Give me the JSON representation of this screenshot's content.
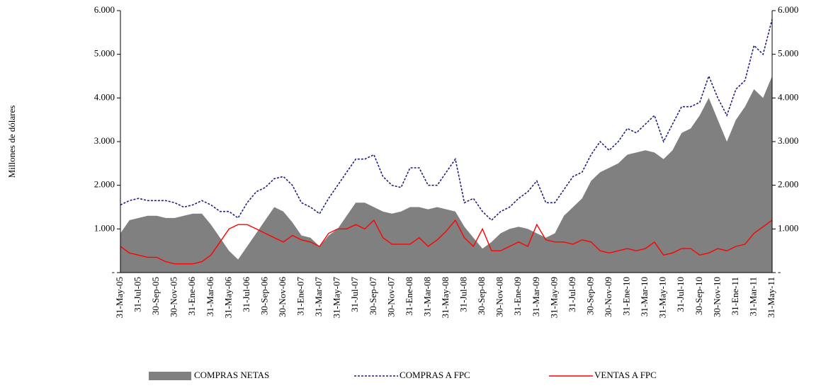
{
  "chart_data": {
    "type": "line",
    "y_label": "Millones de dólares",
    "categories": [
      "31-May-05",
      null,
      "31-Jul-05",
      null,
      "30-Sep-05",
      null,
      "30-Nov-05",
      null,
      "31-Ene-06",
      null,
      "31-Mar-06",
      null,
      "31-May-06",
      null,
      "31-Jul-06",
      null,
      "30-Sep-06",
      null,
      "30-Nov-06",
      null,
      "31-Ene-07",
      null,
      "31-Mar-07",
      null,
      "31-May-07",
      null,
      "31-Jul-07",
      null,
      "30-Sep-07",
      null,
      "30-Nov-07",
      null,
      "31-Ene-08",
      null,
      "31-Mar-08",
      null,
      "31-May-08",
      null,
      "31-Jul-08",
      null,
      "30-Sep-08",
      null,
      "30-Nov-08",
      null,
      "31-Ene-09",
      null,
      "31-Mar-09",
      null,
      "31-May-09",
      null,
      "31-Jul-09",
      null,
      "30-Sep-09",
      null,
      "30-Nov-09",
      null,
      "31-Ene-10",
      null,
      "31-Mar-10",
      null,
      "31-May-10",
      null,
      "31-Jul-10",
      null,
      "30-Sep-10",
      null,
      "30-Nov-10",
      null,
      "31-Ene-11",
      null,
      "31-Mar-11",
      null,
      "31-May-11"
    ],
    "series": [
      {
        "name": "COMPRAS NETAS",
        "color": "#808080",
        "area": true,
        "values": [
          900,
          1200,
          1250,
          1300,
          1300,
          1250,
          1250,
          1300,
          1350,
          1350,
          1100,
          800,
          500,
          300,
          600,
          900,
          1200,
          1500,
          1400,
          1150,
          850,
          800,
          600,
          850,
          1000,
          1300,
          1600,
          1600,
          1500,
          1400,
          1350,
          1400,
          1500,
          1500,
          1450,
          1500,
          1450,
          1400,
          1050,
          800,
          550,
          700,
          900,
          1000,
          1050,
          1000,
          900,
          800,
          900,
          1300,
          1500,
          1700,
          2100,
          2300,
          2400,
          2500,
          2700,
          2750,
          2800,
          2750,
          2600,
          2800,
          3200,
          3300,
          3600,
          4000,
          3500,
          3000,
          3500,
          3800,
          4200,
          4000,
          4500
        ]
      },
      {
        "name": "COMPRAS A FPC",
        "color": "#1f1f7a",
        "dashed": true,
        "values": [
          1550,
          1650,
          1700,
          1650,
          1650,
          1650,
          1600,
          1500,
          1550,
          1650,
          1550,
          1400,
          1400,
          1250,
          1600,
          1850,
          1950,
          2150,
          2200,
          2000,
          1600,
          1500,
          1350,
          1700,
          2000,
          2300,
          2600,
          2600,
          2700,
          2200,
          2000,
          1950,
          2400,
          2400,
          2000,
          2000,
          2300,
          2600,
          1600,
          1700,
          1400,
          1200,
          1400,
          1500,
          1700,
          1850,
          2100,
          1600,
          1600,
          1900,
          2200,
          2300,
          2700,
          3000,
          2800,
          3000,
          3300,
          3200,
          3400,
          3600,
          3000,
          3400,
          3800,
          3800,
          3900,
          4500,
          4000,
          3600,
          4200,
          4400,
          5200,
          5000,
          5800
        ]
      },
      {
        "name": "VENTAS A FPC",
        "color": "#ff0000",
        "values": [
          600,
          450,
          400,
          350,
          350,
          250,
          200,
          200,
          200,
          250,
          400,
          700,
          1000,
          1100,
          1100,
          1000,
          900,
          800,
          700,
          850,
          750,
          700,
          600,
          900,
          1000,
          1000,
          1100,
          1000,
          1200,
          800,
          650,
          650,
          650,
          800,
          600,
          750,
          950,
          1200,
          800,
          600,
          1000,
          500,
          500,
          600,
          700,
          600,
          1100,
          750,
          700,
          700,
          650,
          750,
          700,
          500,
          450,
          500,
          550,
          500,
          550,
          700,
          400,
          450,
          550,
          550,
          400,
          450,
          550,
          500,
          600,
          650,
          900,
          1050,
          1200
        ]
      }
    ],
    "ylim": [
      0,
      6000
    ],
    "yticks": [
      {
        "value": 0,
        "label": "-"
      },
      {
        "value": 1000,
        "label": "1.000"
      },
      {
        "value": 2000,
        "label": "2.000"
      },
      {
        "value": 3000,
        "label": "3.000"
      },
      {
        "value": 4000,
        "label": "4.000"
      },
      {
        "value": 5000,
        "label": "5.000"
      },
      {
        "value": 6000,
        "label": "6.000"
      }
    ],
    "y2lim": [
      0,
      6000
    ],
    "y2ticks": [
      {
        "value": 0,
        "label": "-"
      },
      {
        "value": 1000,
        "label": "1.000"
      },
      {
        "value": 2000,
        "label": "2.000"
      },
      {
        "value": 3000,
        "label": "3.000"
      },
      {
        "value": 4000,
        "label": "4.000"
      },
      {
        "value": 5000,
        "label": "5.000"
      },
      {
        "value": 6000,
        "label": "6.000"
      }
    ],
    "legend": "bottom"
  }
}
